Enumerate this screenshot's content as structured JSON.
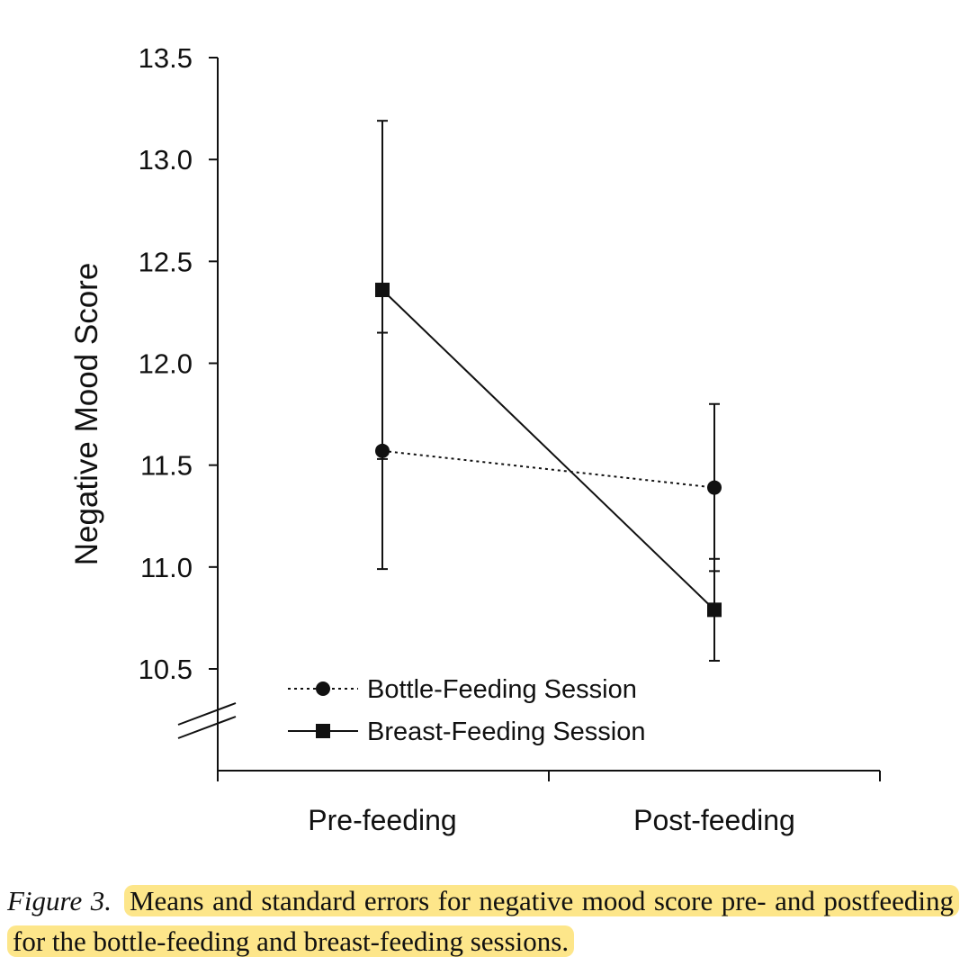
{
  "chart_data": {
    "type": "line",
    "ylabel": "Negative Mood Score",
    "xlabel": "",
    "categories": [
      "Pre-feeding",
      "Post-feeding"
    ],
    "ylim": [
      10.25,
      13.5
    ],
    "yticks": [
      "10.5",
      "11.0",
      "11.5",
      "12.0",
      "12.5",
      "13.0",
      "13.5"
    ],
    "axis_break": true,
    "grid": false,
    "legend_position": "lower-left",
    "series": [
      {
        "name": "Bottle-Feeding Session",
        "marker": "circle",
        "line_style": "dotted",
        "values": [
          11.57,
          11.39
        ],
        "error": [
          0.58,
          0.41
        ]
      },
      {
        "name": "Breast-Feeding Session",
        "marker": "square",
        "line_style": "solid",
        "values": [
          12.36,
          10.79
        ],
        "error": [
          0.83,
          0.25
        ]
      }
    ]
  },
  "caption": {
    "label": "Figure 3.",
    "text": "Means and standard errors for negative mood score pre- and postfeeding for the bottle-feeding and breast-feeding sessions."
  }
}
